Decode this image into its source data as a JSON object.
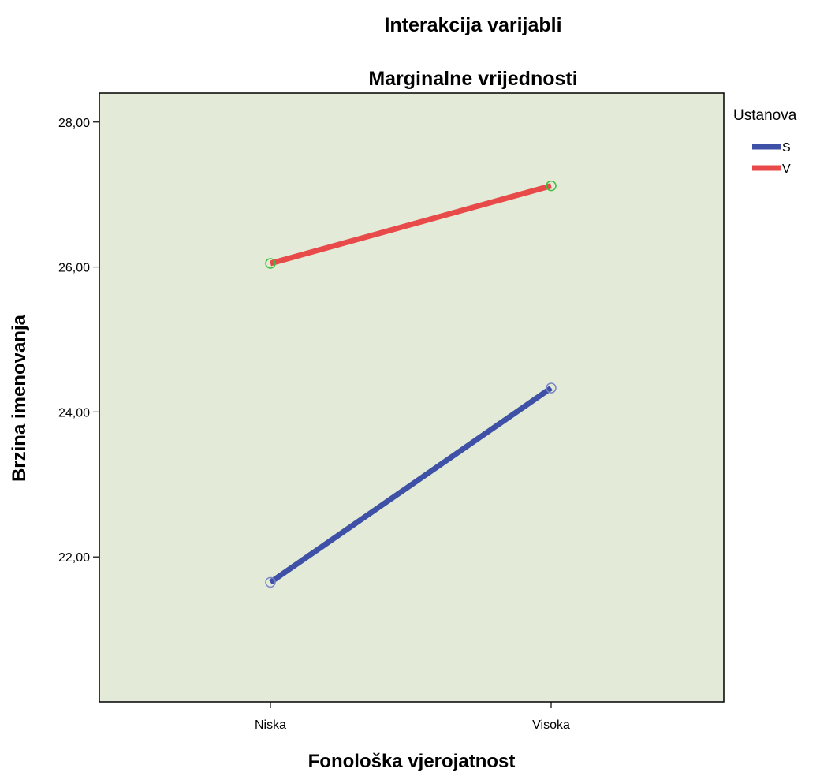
{
  "chart_data": {
    "type": "line",
    "title": "Interakcija varijabli",
    "subtitle": "Marginalne vrijednosti",
    "xlabel": "Fonološka vjerojatnost",
    "ylabel": "Brzina imenovanja",
    "categories": [
      "Niska",
      "Visoka"
    ],
    "ylim": [
      20.0,
      28.4
    ],
    "yticks": [
      22,
      24,
      26,
      28
    ],
    "ytick_labels": [
      "22,00",
      "24,00",
      "26,00",
      "28,00"
    ],
    "grid": false,
    "legend": {
      "title": "Ustanova",
      "placement": "top-right outside"
    },
    "series": [
      {
        "name": "S",
        "values": [
          21.65,
          24.33
        ],
        "color": "#3f51a6",
        "marker_color": "#7a86c8"
      },
      {
        "name": "V",
        "values": [
          26.05,
          27.12
        ],
        "color": "#e84a4a",
        "marker_color": "#3bbf3b"
      }
    ],
    "colors": {
      "plot_background": "#e4ead8",
      "axis": "#000000"
    }
  }
}
